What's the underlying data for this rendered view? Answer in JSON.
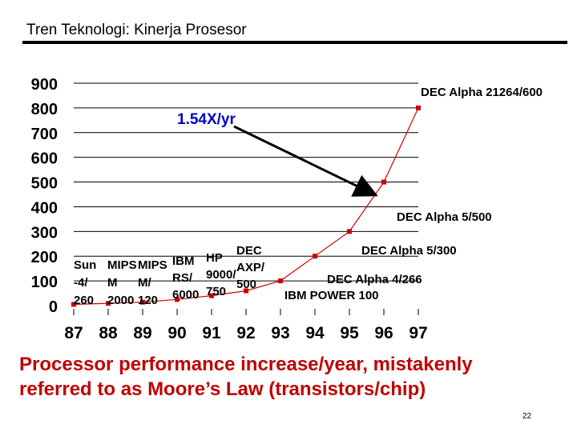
{
  "slide": {
    "title": "Tren Teknologi: Kinerja Prosesor",
    "caption_line1": "Processor performance increase/year, mistakenly",
    "caption_line2": "referred to as Moore’s Law (transistors/chip)",
    "page_number": "22"
  },
  "chart_data": {
    "type": "line",
    "x": [
      "87",
      "88",
      "89",
      "90",
      "91",
      "92",
      "93",
      "94",
      "95",
      "96",
      "97"
    ],
    "series": [
      {
        "values": [
          5,
          9,
          14,
          25,
          40,
          60,
          100,
          200,
          300,
          500,
          800
        ]
      }
    ],
    "yticks": [
      "900",
      "800",
      "700",
      "600",
      "500",
      "400",
      "300",
      "200",
      "100",
      "0"
    ],
    "ylim": [
      0,
      900
    ],
    "grid": true,
    "annotations": [
      {
        "text": "1.54X/yr",
        "color": "#0000cc"
      }
    ],
    "point_labels": [
      {
        "lines": [
          "Sun",
          "-4/",
          "260"
        ]
      },
      {
        "lines": [
          "MIPS",
          "M",
          "2000"
        ]
      },
      {
        "lines": [
          "MIPS",
          "M/",
          "120"
        ]
      },
      {
        "lines": [
          "IBM",
          "RS/",
          "6000"
        ]
      },
      {
        "lines": [
          "HP",
          "9000/",
          "750"
        ]
      },
      {
        "lines": [
          "DEC",
          "AXP/",
          "500"
        ]
      },
      {
        "lines": [
          "IBM POWER 100"
        ]
      },
      {
        "lines": [
          "DEC Alpha 4/266"
        ]
      },
      {
        "lines": [
          "DEC Alpha 5/300"
        ]
      },
      {
        "lines": [
          "DEC Alpha 5/500"
        ]
      },
      {
        "lines": [
          "DEC Alpha 21264/600"
        ]
      }
    ],
    "colors": {
      "line": "#cc0000",
      "marker": "#cc0000",
      "arrow": "#000000"
    }
  }
}
